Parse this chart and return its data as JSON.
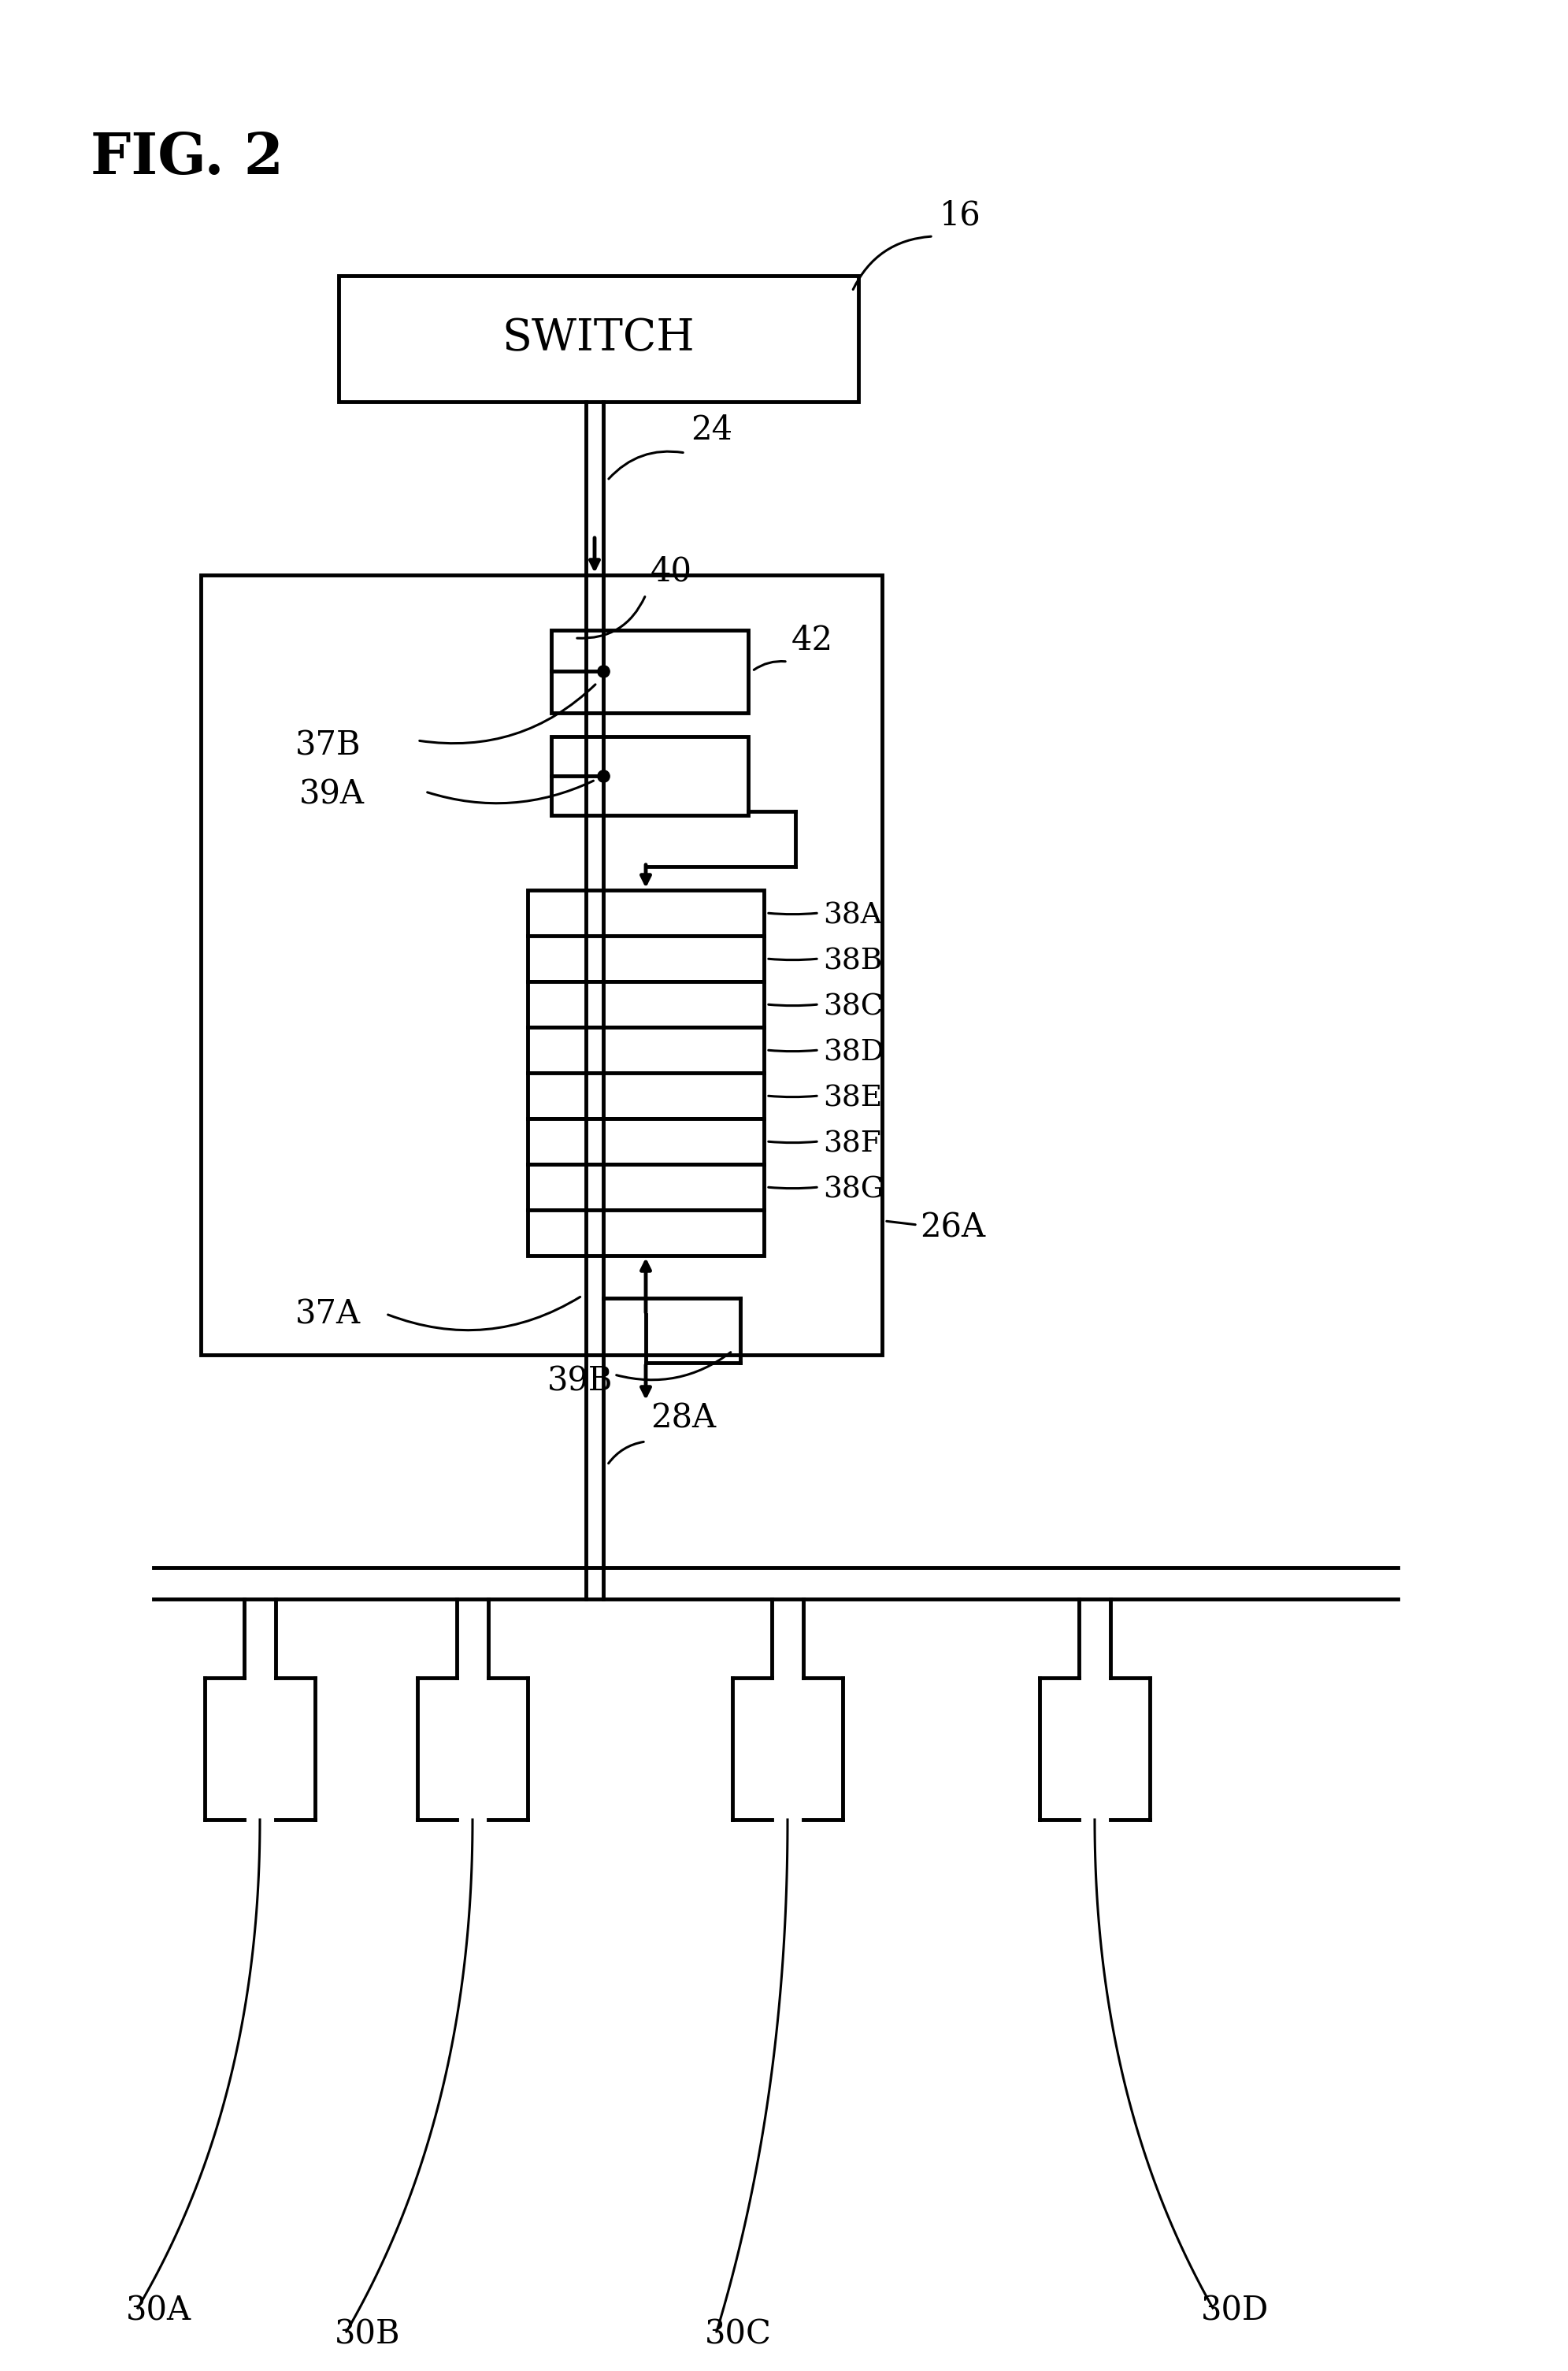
{
  "fig_width": 19.91,
  "fig_height": 30.1,
  "bg_color": "#ffffff",
  "switch_label": "SWITCH",
  "fig_title": "FIG. 2",
  "ref_16": "16",
  "ref_24": "24",
  "ref_40": "40",
  "ref_42": "42",
  "ref_37B": "37B",
  "ref_39A": "39A",
  "ref_38A": "38A",
  "ref_38B": "38B",
  "ref_38C": "38C",
  "ref_38D": "38D",
  "ref_38E": "38E",
  "ref_38F": "38F",
  "ref_38G": "38G",
  "ref_26A": "26A",
  "ref_37A": "37A",
  "ref_39B": "39B",
  "ref_28A": "28A",
  "ref_30A": "30A",
  "ref_30B": "30B",
  "ref_30C": "30C",
  "ref_30D": "30D"
}
